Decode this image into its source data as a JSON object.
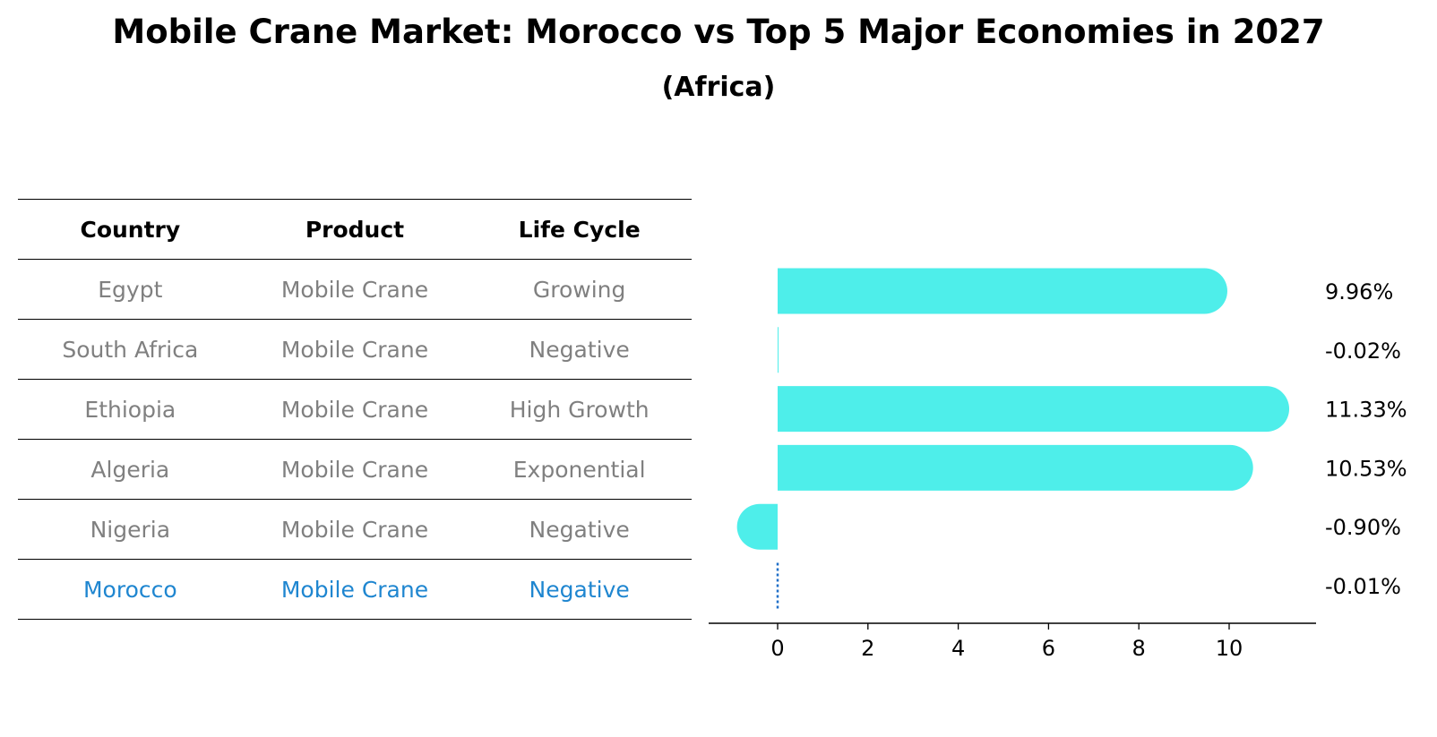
{
  "title": "Mobile Crane Market: Morocco vs Top 5 Major Economies in 2027",
  "subtitle": "(Africa)",
  "table": {
    "headers": [
      "Country",
      "Product",
      "Life Cycle"
    ],
    "rows": [
      {
        "country": "Egypt",
        "product": "Mobile Crane",
        "life_cycle": "Growing"
      },
      {
        "country": "South Africa",
        "product": "Mobile Crane",
        "life_cycle": "Negative"
      },
      {
        "country": "Ethiopia",
        "product": "Mobile Crane",
        "life_cycle": "High Growth"
      },
      {
        "country": "Algeria",
        "product": "Mobile Crane",
        "life_cycle": "Exponential"
      },
      {
        "country": "Nigeria",
        "product": "Mobile Crane",
        "life_cycle": "Negative"
      },
      {
        "country": "Morocco",
        "product": "Mobile Crane",
        "life_cycle": "Negative"
      }
    ],
    "highlight_color": "#1f86d0",
    "text_color": "#808080"
  },
  "chart_data": {
    "type": "bar",
    "orientation": "horizontal",
    "categories": [
      "Egypt",
      "South Africa",
      "Ethiopia",
      "Algeria",
      "Nigeria",
      "Morocco"
    ],
    "values": [
      9.96,
      -0.02,
      11.33,
      10.53,
      -0.9,
      -0.01
    ],
    "value_labels": [
      "9.96%",
      "-0.02%",
      "11.33%",
      "10.53%",
      "-0.90%",
      "-0.01%"
    ],
    "xticks": [
      0,
      2,
      4,
      6,
      8,
      10
    ],
    "xlim": [
      -1.5,
      11.9
    ],
    "bar_color": "#4eeeea",
    "highlight_color": "#1f6fc8",
    "highlight_index": 5,
    "xlabel": "",
    "ylabel": ""
  }
}
